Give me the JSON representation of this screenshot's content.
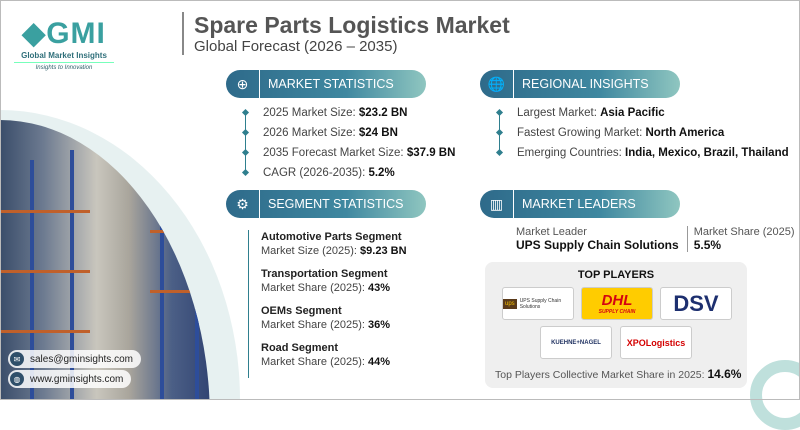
{
  "brand": {
    "logo_text": "GMI",
    "name": "Global Market Insights",
    "tagline": "Insights to Innovation"
  },
  "header": {
    "title": "Spare Parts Logistics Market",
    "subtitle": "Global Forecast (2026 – 2035)"
  },
  "market_statistics": {
    "heading": "MARKET STATISTICS",
    "icon": "chart-globe-icon",
    "items": [
      {
        "label": "2025 Market Size: ",
        "value": "$23.2 BN"
      },
      {
        "label": "2026 Market Size: ",
        "value": "$24 BN"
      },
      {
        "label": "2035 Forecast Market Size: ",
        "value": "$37.9 BN"
      },
      {
        "label": "CAGR (2026-2035): ",
        "value": "5.2%"
      }
    ]
  },
  "regional_insights": {
    "heading": "REGIONAL INSIGHTS",
    "icon": "globe-icon",
    "items": [
      {
        "label": "Largest Market: ",
        "value": "Asia Pacific"
      },
      {
        "label": "Fastest Growing Market: ",
        "value": "North America"
      },
      {
        "label": "Emerging Countries: ",
        "value": "India, Mexico, Brazil, Thailand"
      }
    ]
  },
  "segment_statistics": {
    "heading": "SEGMENT STATISTICS",
    "icon": "segment-icon",
    "items": [
      {
        "name": "Automotive Parts Segment",
        "label": "Market Size (2025): ",
        "value": "$9.23 BN"
      },
      {
        "name": "Transportation Segment",
        "label": "Market Share (2025): ",
        "value": "43%"
      },
      {
        "name": "OEMs Segment",
        "label": "Market Share (2025): ",
        "value": "36%"
      },
      {
        "name": "Road Segment",
        "label": "Market Share (2025): ",
        "value": "44%"
      }
    ]
  },
  "market_leaders": {
    "heading": "MARKET LEADERS",
    "icon": "leaders-icon",
    "leader_label": "Market Leader",
    "leader": "UPS Supply Chain Solutions",
    "share_label": "Market Share (2025)",
    "share": "5.5%"
  },
  "top_players": {
    "heading": "TOP PLAYERS",
    "logos": [
      "UPS Supply Chain Solutions",
      "DHL",
      "DSV",
      "KUEHNE+NAGEL",
      "XPOLogistics"
    ],
    "dhl_sub": "SUPPLY CHAIN",
    "collective_label": "Top Players Collective Market Share in 2025: ",
    "collective_value": "14.6%"
  },
  "contact": {
    "email": "sales@gminsights.com",
    "website": "www.gminsights.com"
  },
  "colors": {
    "accent": "#2f7f8e",
    "pill_start": "#2e6a8a",
    "pill_end": "#8fc6c0"
  }
}
